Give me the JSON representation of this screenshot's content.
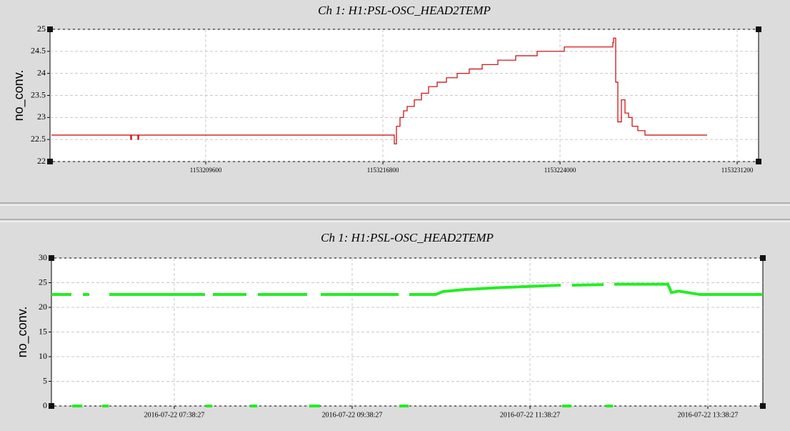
{
  "chart_data": [
    {
      "type": "line",
      "title": "Ch 1: H1:PSL-OSC_HEAD2TEMP",
      "y_label": "no_conv.",
      "color": "#cc0000",
      "step": "post",
      "grid": true,
      "x": [
        1153203330,
        1153206552,
        1153206581,
        1153206842,
        1153206871,
        1153217206,
        1153217264,
        1153217351,
        1153217496,
        1153217641,
        1153217786,
        1153218077,
        1153218367,
        1153218657,
        1153219006,
        1153219383,
        1153219819,
        1153220312,
        1153220835,
        1153221473,
        1153222199,
        1153223070,
        1153224173,
        1153226147,
        1153226176,
        1153226263,
        1153226350,
        1153226495,
        1153226641,
        1153226786,
        1153226931,
        1153227163,
        1153227453,
        1153229979
      ],
      "values": [
        22.6,
        22.5,
        22.6,
        22.5,
        22.6,
        22.6,
        22.4,
        22.8,
        23.0,
        23.15,
        23.25,
        23.4,
        23.55,
        23.7,
        23.8,
        23.9,
        24.0,
        24.1,
        24.2,
        24.3,
        24.4,
        24.5,
        24.6,
        24.7,
        24.8,
        23.8,
        22.9,
        23.4,
        23.1,
        23.0,
        22.8,
        22.7,
        22.6,
        22.6
      ],
      "xlim": [
        1153203270,
        1153232070
      ],
      "xticks": [
        1153209600,
        1153216800,
        1153224000,
        1153231200
      ],
      "ylim": [
        22,
        25
      ],
      "yticks": [
        22,
        22.5,
        23,
        23.5,
        24,
        24.5,
        25
      ]
    },
    {
      "type": "line",
      "title": "Ch 1: H1:PSL-OSC_HEAD2TEMP",
      "y_label": "no_conv.",
      "color": "#22ee22",
      "grid": true,
      "x": [
        "2016-07-22 06:15:33",
        "2016-07-22 06:29:03",
        null,
        "2016-07-22 06:29:32",
        "2016-07-22 06:36:17",
        null,
        "2016-07-22 06:36:46",
        "2016-07-22 06:41:06",
        null,
        "2016-07-22 06:49:46",
        "2016-07-22 06:54:07",
        null,
        "2016-07-22 06:54:36",
        "2016-07-22 07:59:10",
        null,
        "2016-07-22 07:59:39",
        "2016-07-22 08:04:00",
        null,
        "2016-07-22 08:04:28",
        "2016-07-22 08:27:08",
        null,
        "2016-07-22 08:29:32",
        "2016-07-22 08:34:21",
        null,
        "2016-07-22 08:34:50",
        "2016-07-22 09:08:05",
        null,
        "2016-07-22 09:09:32",
        "2016-07-22 09:16:46",
        null,
        "2016-07-22 09:17:15",
        "2016-07-22 10:09:47",
        null,
        "2016-07-22 10:10:16",
        "2016-07-22 10:16:31",
        null,
        "2016-07-22 10:17:00",
        "2016-07-22 10:34:50",
        "2016-07-22 10:39:39",
        "2016-07-22 10:54:07",
        "2016-07-22 11:18:13",
        "2016-07-22 11:42:18",
        "2016-07-22 11:59:11",
        null,
        "2016-07-22 12:00:08",
        "2016-07-22 12:06:24",
        null,
        "2016-07-22 12:06:53",
        "2016-07-22 12:28:06",
        null,
        "2016-07-22 12:29:32",
        "2016-07-22 12:34:21",
        null,
        "2016-07-22 12:35:19",
        "2016-07-22 13:11:28",
        "2016-07-22 13:13:53",
        "2016-07-22 13:18:42",
        "2016-07-22 13:33:09",
        "2016-07-22 14:15:34"
      ],
      "values": [
        22.6,
        22.6,
        null,
        0,
        0,
        null,
        22.6,
        22.6,
        null,
        0,
        0,
        null,
        22.6,
        22.6,
        null,
        0,
        0,
        null,
        22.6,
        22.6,
        null,
        0,
        0,
        null,
        22.6,
        22.6,
        null,
        0,
        0,
        null,
        22.6,
        22.6,
        null,
        0,
        0,
        null,
        22.6,
        22.6,
        23.2,
        23.6,
        24.0,
        24.3,
        24.5,
        null,
        0,
        0,
        null,
        24.5,
        24.6,
        null,
        0,
        0,
        null,
        24.7,
        24.7,
        23.0,
        23.3,
        22.6,
        22.6
      ],
      "xlim": [
        "2016-07-22 06:15:33",
        "2016-07-22 14:15:34"
      ],
      "xticks": [
        "2016-07-22 07:38:27",
        "2016-07-22 09:38:27",
        "2016-07-22 11:38:27",
        "2016-07-22 13:38:27"
      ],
      "ylim": [
        0,
        30
      ],
      "yticks": [
        0,
        5,
        10,
        15,
        20,
        25,
        30
      ]
    }
  ]
}
